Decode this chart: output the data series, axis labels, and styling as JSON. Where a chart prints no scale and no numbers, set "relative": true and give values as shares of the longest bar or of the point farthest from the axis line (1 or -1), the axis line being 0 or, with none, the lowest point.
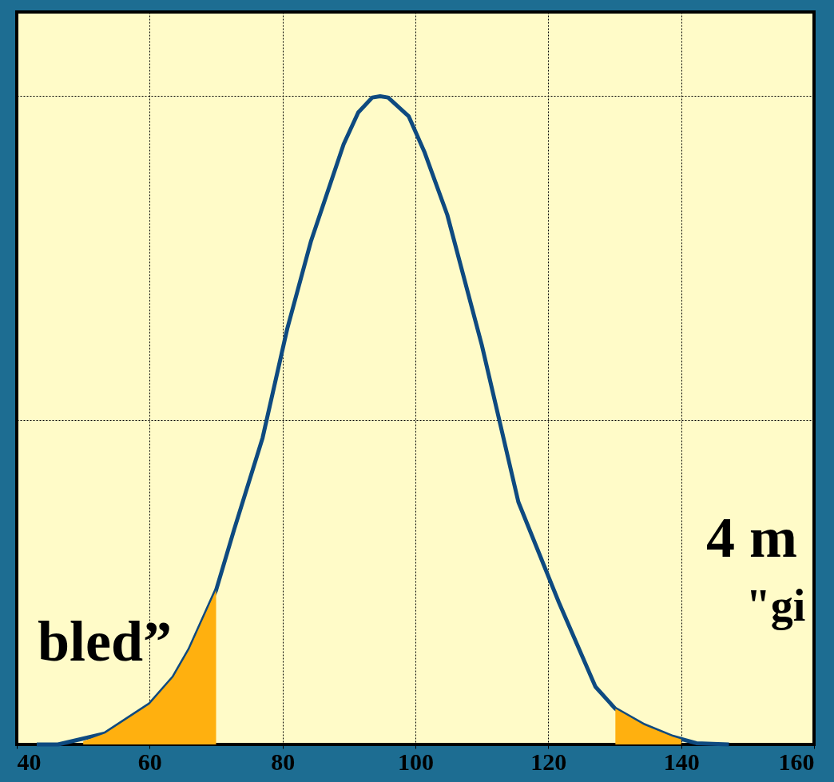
{
  "chart_data": {
    "type": "line",
    "relative": true,
    "xlim": [
      40,
      160
    ],
    "xticks": [
      40,
      60,
      80,
      100,
      120,
      140,
      160
    ],
    "grid": true,
    "series": [
      {
        "color": "#0e4a80",
        "x": [
          43,
          46.2,
          53.3,
          60,
          63.6,
          66,
          70,
          72.7,
          77,
          80.7,
          84.3,
          89.2,
          91.4,
          93.5,
          94.7,
          95.9,
          99,
          101.4,
          104.8,
          110,
          115.5,
          121.6,
          127.1,
          130.1,
          134.4,
          138.7,
          142.3,
          147.2
        ],
        "values": [
          0,
          0,
          0.017,
          0.062,
          0.104,
          0.147,
          0.238,
          0.331,
          0.473,
          0.641,
          0.777,
          0.926,
          0.975,
          0.998,
          1,
          0.998,
          0.969,
          0.913,
          0.817,
          0.616,
          0.374,
          0.219,
          0.089,
          0.055,
          0.03,
          0.012,
          0.002,
          0
        ]
      },
      {
        "type": "area",
        "color": "#ffb00f",
        "x": [
          50,
          53.3,
          60,
          63.6,
          66,
          70
        ],
        "values": [
          0.005,
          0.017,
          0.062,
          0.104,
          0.147,
          0.238
        ]
      },
      {
        "type": "area",
        "color": "#ffb00f",
        "x": [
          130.1,
          134.4,
          138.7,
          140
        ],
        "values": [
          0.055,
          0.03,
          0.012,
          0.008
        ]
      }
    ],
    "annotations": [
      "bled”",
      "4 m",
      "\"gi"
    ]
  }
}
